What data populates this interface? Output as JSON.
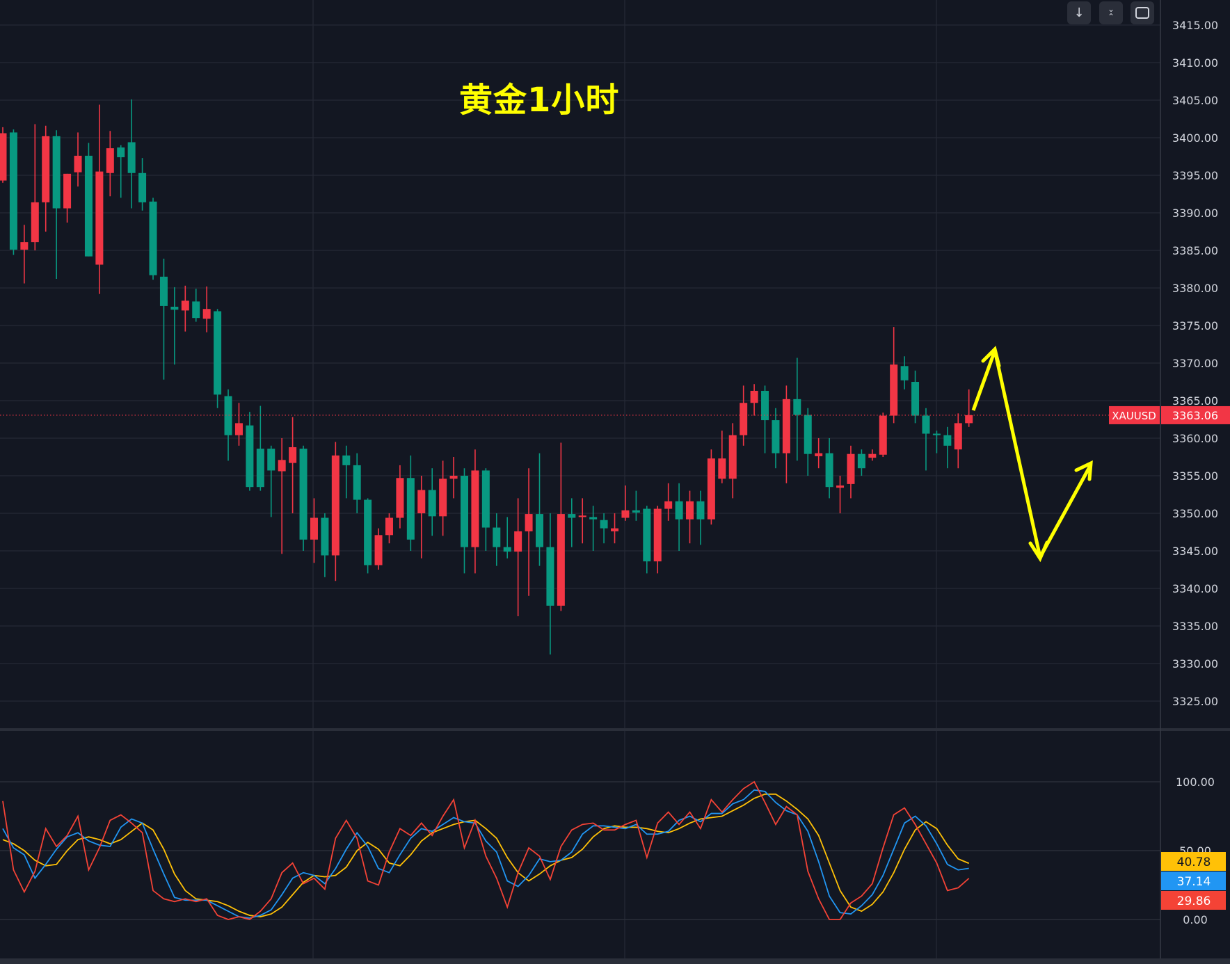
{
  "chart_data": {
    "type": "candlestick",
    "title": "黄金1小时",
    "symbol": "XAUUSD",
    "last_price": "3363.06",
    "colors": {
      "up": "#f23645",
      "down": "#089981",
      "line_fast": "#f44336",
      "line_mid": "#2196f3",
      "line_slow": "#ffc107",
      "annotation": "#ffff00"
    },
    "price_axis": {
      "ylim": [
        3320,
        3418
      ],
      "ticks": [
        "3415.00",
        "3410.00",
        "3405.00",
        "3400.00",
        "3395.00",
        "3390.00",
        "3385.00",
        "3380.00",
        "3375.00",
        "3370.00",
        "3365.00",
        "3360.00",
        "3355.00",
        "3350.00",
        "3345.00",
        "3340.00",
        "3335.00",
        "3330.00",
        "3325.00"
      ]
    },
    "ohlc": [
      [
        3394.3,
        3401.4,
        3394,
        3400.6
      ],
      [
        3400.7,
        3401.1,
        3384.4,
        3385.1
      ],
      [
        3385.1,
        3388.4,
        3380.6,
        3386.1
      ],
      [
        3386.1,
        3401.8,
        3385,
        3391.4
      ],
      [
        3391.4,
        3401.6,
        3387.5,
        3400.2
      ],
      [
        3400.2,
        3401,
        3381.2,
        3390.6
      ],
      [
        3390.6,
        3395.2,
        3388.7,
        3395.2
      ],
      [
        3395.4,
        3400.7,
        3393.5,
        3397.6
      ],
      [
        3397.6,
        3399.3,
        3384.2,
        3384.2
      ],
      [
        3383.1,
        3404.4,
        3379.2,
        3395.5
      ],
      [
        3395.3,
        3400.9,
        3392.2,
        3398.6
      ],
      [
        3398.7,
        3399,
        3392,
        3397.4
      ],
      [
        3399.4,
        3405.1,
        3390.6,
        3395.3
      ],
      [
        3395.3,
        3397.3,
        3390.3,
        3391.4
      ],
      [
        3391.5,
        3392,
        3381.1,
        3381.7
      ],
      [
        3381.5,
        3383.9,
        3367.8,
        3377.6
      ],
      [
        3377.5,
        3380.1,
        3369.8,
        3377.1
      ],
      [
        3377,
        3380.3,
        3374.2,
        3378.3
      ],
      [
        3378.2,
        3379.9,
        3375.5,
        3376
      ],
      [
        3375.9,
        3380.2,
        3374.1,
        3377.2
      ],
      [
        3376.9,
        3377.2,
        3364,
        3365.8
      ],
      [
        3365.6,
        3366.5,
        3357,
        3360.4
      ],
      [
        3360.4,
        3364.7,
        3359,
        3362
      ],
      [
        3361.7,
        3363.5,
        3353,
        3353.5
      ],
      [
        3358.6,
        3364.3,
        3353,
        3353.5
      ],
      [
        3358.6,
        3359,
        3349.5,
        3355.7
      ],
      [
        3355.6,
        3360,
        3344.6,
        3357.1
      ],
      [
        3356.7,
        3362.8,
        3350,
        3358.8
      ],
      [
        3358.6,
        3359,
        3345,
        3346.5
      ],
      [
        3346.5,
        3352,
        3343.4,
        3349.4
      ],
      [
        3349.4,
        3350,
        3341.5,
        3344.4
      ],
      [
        3344.4,
        3359.5,
        3341,
        3357.7
      ],
      [
        3357.7,
        3359,
        3352,
        3356.4
      ],
      [
        3356.4,
        3358,
        3350,
        3351.8
      ],
      [
        3351.8,
        3352,
        3342,
        3343.1
      ],
      [
        3343.1,
        3348,
        3342.5,
        3347.1
      ],
      [
        3347.1,
        3350,
        3346,
        3349.4
      ],
      [
        3349.4,
        3356.4,
        3348,
        3354.7
      ],
      [
        3354.7,
        3357.7,
        3345,
        3346.5
      ],
      [
        3350,
        3355,
        3344,
        3353.1
      ],
      [
        3353.1,
        3356,
        3347,
        3349.6
      ],
      [
        3349.6,
        3357,
        3347,
        3354.6
      ],
      [
        3354.6,
        3357.5,
        3352,
        3355
      ],
      [
        3355,
        3356,
        3342,
        3345.5
      ],
      [
        3345.5,
        3358.5,
        3342,
        3355.7
      ],
      [
        3355.7,
        3356,
        3345,
        3348.1
      ],
      [
        3348.1,
        3350,
        3343,
        3345.5
      ],
      [
        3345.5,
        3349.5,
        3344,
        3344.9
      ],
      [
        3344.9,
        3352,
        3336.3,
        3347.6
      ],
      [
        3347.6,
        3356,
        3339,
        3349.9
      ],
      [
        3349.9,
        3358,
        3343,
        3345.5
      ],
      [
        3345.5,
        3350,
        3331.2,
        3337.7
      ],
      [
        3337.7,
        3359.4,
        3337,
        3349.9
      ],
      [
        3349.9,
        3352,
        3345.5,
        3349.4
      ],
      [
        3349.5,
        3352,
        3346,
        3349.7
      ],
      [
        3349.5,
        3351,
        3345,
        3349.2
      ],
      [
        3349.1,
        3350,
        3346,
        3348
      ],
      [
        3347.6,
        3350,
        3346,
        3348
      ],
      [
        3349.4,
        3353.7,
        3349,
        3350.4
      ],
      [
        3350.4,
        3353,
        3349,
        3350.1
      ],
      [
        3350.6,
        3351,
        3342,
        3343.6
      ],
      [
        3343.6,
        3351,
        3342,
        3350.6
      ],
      [
        3350.6,
        3354,
        3349,
        3351.6
      ],
      [
        3351.6,
        3354,
        3345,
        3349.2
      ],
      [
        3349.2,
        3353,
        3346,
        3351.6
      ],
      [
        3351.6,
        3353,
        3345.8,
        3349.2
      ],
      [
        3349.2,
        3358.5,
        3348.5,
        3357.3
      ],
      [
        3354.6,
        3361,
        3354,
        3357.3
      ],
      [
        3354.6,
        3362,
        3352,
        3360.4
      ],
      [
        3360.4,
        3367,
        3359,
        3364.7
      ],
      [
        3364.7,
        3367.2,
        3363,
        3366.3
      ],
      [
        3366.3,
        3367,
        3358,
        3362.4
      ],
      [
        3362.4,
        3364,
        3356,
        3358
      ],
      [
        3358,
        3367,
        3354,
        3365.2
      ],
      [
        3365.2,
        3370.7,
        3357,
        3363.1
      ],
      [
        3363.1,
        3364,
        3355,
        3357.9
      ],
      [
        3357.6,
        3360,
        3356,
        3358
      ],
      [
        3358,
        3360,
        3352,
        3353.5
      ],
      [
        3353.4,
        3355,
        3350,
        3353.7
      ],
      [
        3353.9,
        3359,
        3352,
        3357.9
      ],
      [
        3357.9,
        3358.5,
        3355,
        3356
      ],
      [
        3357.4,
        3358.5,
        3357,
        3357.9
      ],
      [
        3357.8,
        3363.4,
        3357.5,
        3363
      ],
      [
        3363,
        3374.8,
        3362,
        3369.8
      ],
      [
        3369.6,
        3370.9,
        3366.5,
        3367.7
      ],
      [
        3367.5,
        3369,
        3362,
        3363
      ],
      [
        3363,
        3364,
        3355.7,
        3360.6
      ],
      [
        3360.6,
        3361,
        3358,
        3360.4
      ],
      [
        3360.4,
        3361.5,
        3356,
        3359
      ],
      [
        3358.5,
        3363.3,
        3356,
        3362
      ],
      [
        3362,
        3366.5,
        3361.5,
        3363.06
      ]
    ],
    "oscillator": {
      "ylim": [
        0,
        100
      ],
      "ticks": [
        "100.00",
        "50.00",
        "0.00"
      ],
      "last_values": {
        "slow": "40.78",
        "mid": "37.14",
        "fast": "29.86"
      },
      "fast": [
        86,
        36,
        20,
        35,
        66,
        53,
        61,
        75,
        36,
        52,
        72,
        76,
        70,
        63,
        21,
        15,
        13,
        15,
        13,
        15,
        3,
        0,
        2,
        0,
        6,
        15,
        34,
        41,
        26,
        30,
        22,
        59,
        72,
        59,
        28,
        25,
        49,
        66,
        61,
        70,
        61,
        75,
        87,
        52,
        72,
        46,
        30,
        9,
        34,
        52,
        46,
        29,
        53,
        65,
        69,
        70,
        65,
        65,
        69,
        72,
        45,
        70,
        78,
        69,
        78,
        66,
        87,
        78,
        87,
        95,
        100,
        85,
        69,
        82,
        76,
        35,
        15,
        0,
        0,
        12,
        17,
        26,
        52,
        76,
        81,
        69,
        55,
        41,
        21,
        23,
        29.86
      ],
      "mid": [
        66,
        52,
        47,
        30,
        40,
        51,
        60,
        63,
        57,
        54,
        53,
        67,
        73,
        70,
        51,
        33,
        16,
        14,
        14,
        14,
        10,
        6,
        2,
        1,
        3,
        7,
        18,
        30,
        34,
        32,
        26,
        37,
        51,
        63,
        53,
        37,
        34,
        47,
        59,
        66,
        64,
        69,
        74,
        71,
        70,
        57,
        49,
        28,
        24,
        32,
        44,
        42,
        43,
        49,
        62,
        68,
        68,
        67,
        66,
        69,
        62,
        62,
        64,
        72,
        75,
        71,
        77,
        77,
        84,
        87,
        94,
        93,
        85,
        79,
        76,
        64,
        42,
        17,
        5,
        4,
        10,
        18,
        32,
        51,
        70,
        75,
        68,
        55,
        40,
        36,
        37.14
      ],
      "slow": [
        58,
        55,
        50,
        43,
        39,
        40,
        50,
        58,
        60,
        58,
        55,
        58,
        64,
        70,
        65,
        51,
        33,
        21,
        15,
        14,
        13,
        10,
        6,
        3,
        2,
        4,
        9,
        18,
        27,
        32,
        31,
        32,
        38,
        50,
        56,
        51,
        41,
        39,
        47,
        57,
        63,
        66,
        69,
        71,
        72,
        66,
        59,
        45,
        34,
        28,
        33,
        39,
        43,
        45,
        51,
        60,
        66,
        68,
        67,
        67,
        66,
        64,
        63,
        66,
        70,
        73,
        74,
        75,
        79,
        83,
        88,
        91,
        91,
        86,
        80,
        73,
        61,
        41,
        21,
        9,
        6,
        11,
        20,
        34,
        51,
        65,
        71,
        66,
        54,
        44,
        40.78
      ]
    }
  },
  "toolbar": {
    "scroll_icon": "arrow-down-icon",
    "collapse_icon": "collapse-icon",
    "fullscreen_icon": "fullscreen-icon"
  }
}
